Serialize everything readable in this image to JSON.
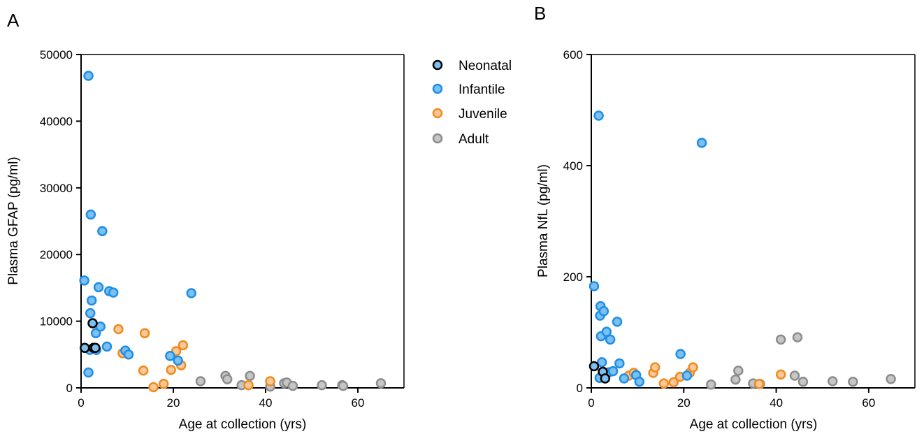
{
  "panels": [
    {
      "letter": "A",
      "xlabel": "Age at collection (yrs)",
      "ylabel": "Plasma GFAP (pg/ml)",
      "xticks": [
        "0",
        "20",
        "40",
        "60"
      ],
      "yticks": [
        "0",
        "10000",
        "20000",
        "30000",
        "40000",
        "50000"
      ]
    },
    {
      "letter": "B",
      "xlabel": "Age at collection (yrs)",
      "ylabel": "Plasma NfL (pg/ml)",
      "xticks": [
        "0",
        "20",
        "40",
        "60"
      ],
      "yticks": [
        "0",
        "200",
        "400",
        "600"
      ]
    }
  ],
  "legend": {
    "position": "right of panel A",
    "items": [
      {
        "label": "Neonatal",
        "fill": "#7cc0ef",
        "stroke": "#000000"
      },
      {
        "label": "Infantile",
        "fill": "#7cc0ef",
        "stroke": "#1e8ee6"
      },
      {
        "label": "Juvenile",
        "fill": "#fbc89a",
        "stroke": "#f08b1f"
      },
      {
        "label": "Adult",
        "fill": "#c6c6c6",
        "stroke": "#8d8d8d"
      }
    ]
  },
  "chart_data": [
    {
      "type": "scatter",
      "xlabel": "Age at collection (yrs)",
      "ylabel": "Plasma GFAP (pg/ml)",
      "xlim": [
        0,
        70
      ],
      "ylim": [
        0,
        50000
      ],
      "grid": false,
      "series": [
        {
          "name": "Neonatal",
          "points": [
            [
              0.8,
              6000
            ],
            [
              2.5,
              9700
            ],
            [
              2.7,
              6000
            ],
            [
              3.1,
              6000
            ]
          ]
        },
        {
          "name": "Infantile",
          "points": [
            [
              0.7,
              16100
            ],
            [
              1.6,
              46800
            ],
            [
              1.6,
              2300
            ],
            [
              1.9,
              5700
            ],
            [
              2.0,
              11200
            ],
            [
              2.1,
              26000
            ],
            [
              2.3,
              13100
            ],
            [
              3.2,
              8200
            ],
            [
              3.3,
              5700
            ],
            [
              3.8,
              15100
            ],
            [
              4.2,
              9200
            ],
            [
              4.6,
              23500
            ],
            [
              5.6,
              6200
            ],
            [
              6.1,
              14500
            ],
            [
              7.0,
              14300
            ],
            [
              9.6,
              5600
            ],
            [
              10.3,
              5000
            ],
            [
              19.3,
              4800
            ],
            [
              21.0,
              4100
            ],
            [
              23.9,
              14200
            ]
          ]
        },
        {
          "name": "Juvenile",
          "points": [
            [
              8.1,
              8800
            ],
            [
              9.0,
              5200
            ],
            [
              13.5,
              2600
            ],
            [
              13.8,
              8200
            ],
            [
              15.7,
              100
            ],
            [
              17.9,
              600
            ],
            [
              19.5,
              2700
            ],
            [
              20.6,
              5500
            ],
            [
              21.7,
              3400
            ],
            [
              22.1,
              6400
            ],
            [
              36.3,
              400
            ],
            [
              41.0,
              1000
            ]
          ]
        },
        {
          "name": "Adult",
          "points": [
            [
              25.9,
              1000
            ],
            [
              31.3,
              1800
            ],
            [
              31.7,
              1300
            ],
            [
              34.8,
              400
            ],
            [
              36.6,
              1800
            ],
            [
              41.0,
              200
            ],
            [
              44.0,
              700
            ],
            [
              44.6,
              800
            ],
            [
              45.9,
              300
            ],
            [
              52.2,
              400
            ],
            [
              56.6,
              400
            ],
            [
              56.8,
              300
            ],
            [
              65.0,
              700
            ]
          ]
        }
      ]
    },
    {
      "type": "scatter",
      "xlabel": "Age at collection (yrs)",
      "ylabel": "Plasma NfL (pg/ml)",
      "xlim": [
        0,
        70
      ],
      "ylim": [
        0,
        600
      ],
      "grid": false,
      "series": [
        {
          "name": "Neonatal",
          "points": [
            [
              0.6,
              39
            ],
            [
              2.5,
              29
            ],
            [
              3.0,
              17
            ]
          ]
        },
        {
          "name": "Infantile",
          "points": [
            [
              0.6,
              183
            ],
            [
              1.6,
              490
            ],
            [
              1.8,
              18
            ],
            [
              1.9,
              130
            ],
            [
              2.0,
              147
            ],
            [
              2.1,
              93
            ],
            [
              2.3,
              46
            ],
            [
              2.7,
              138
            ],
            [
              3.3,
              101
            ],
            [
              3.8,
              28
            ],
            [
              4.1,
              87
            ],
            [
              4.7,
              30
            ],
            [
              5.6,
              119
            ],
            [
              6.1,
              44
            ],
            [
              7.1,
              17
            ],
            [
              9.7,
              23
            ],
            [
              10.4,
              11
            ],
            [
              19.3,
              61
            ],
            [
              20.7,
              22
            ],
            [
              23.9,
              441
            ]
          ]
        },
        {
          "name": "Juvenile",
          "points": [
            [
              8.1,
              22
            ],
            [
              9.2,
              27
            ],
            [
              13.4,
              27
            ],
            [
              13.8,
              37
            ],
            [
              15.7,
              8
            ],
            [
              17.8,
              10
            ],
            [
              19.2,
              20
            ],
            [
              21.3,
              27
            ],
            [
              22.0,
              37
            ],
            [
              36.3,
              7
            ],
            [
              41.0,
              24
            ]
          ]
        },
        {
          "name": "Adult",
          "points": [
            [
              25.9,
              6
            ],
            [
              31.2,
              15
            ],
            [
              31.8,
              31
            ],
            [
              35.0,
              8
            ],
            [
              36.5,
              7
            ],
            [
              41.0,
              87
            ],
            [
              44.0,
              22
            ],
            [
              44.6,
              91
            ],
            [
              45.8,
              11
            ],
            [
              52.2,
              12
            ],
            [
              56.6,
              11
            ],
            [
              64.8,
              16
            ]
          ]
        }
      ]
    }
  ]
}
